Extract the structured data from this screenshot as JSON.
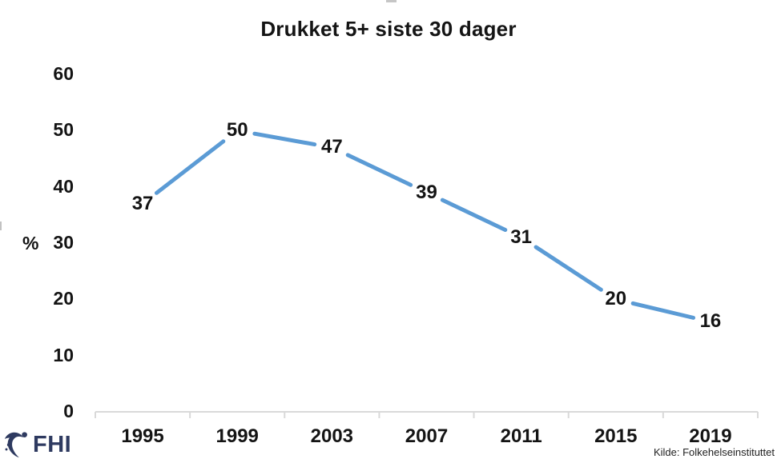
{
  "chart_data": {
    "type": "line",
    "title": "Drukket 5+ siste 30 dager",
    "categories": [
      "1995",
      "1999",
      "2003",
      "2007",
      "2011",
      "2015",
      "2019"
    ],
    "values": [
      37,
      50,
      47,
      39,
      31,
      20,
      16
    ],
    "data_labels": [
      "37",
      "50",
      "47",
      "39",
      "31",
      "20",
      "16"
    ],
    "xlabel": "",
    "ylabel": "%",
    "ylim": [
      0,
      60
    ],
    "yticks": [
      0,
      10,
      20,
      30,
      40,
      50,
      60
    ],
    "grid": false,
    "legend_position": "none",
    "colors": {
      "line": "#5B9BD5",
      "axis": "#D9D9D9",
      "text": "#141414"
    }
  },
  "footer": {
    "logo_icon": "fhi-swoosh-icon",
    "logo_text": "FHI",
    "logo_color": "#2E3A60",
    "source": "Kilde: Folkehelseinstituttet"
  }
}
